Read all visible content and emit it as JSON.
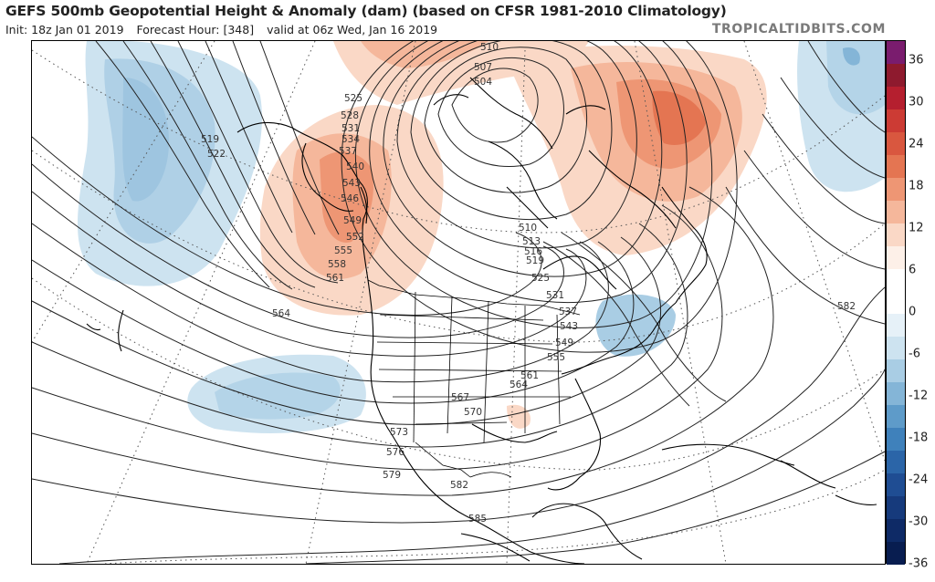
{
  "header": {
    "title": "GEFS 500mb Geopotential Height & Anomaly (dam) (based on CFSR 1981-2010 Climatology)",
    "init": "Init: 18z Jan 01 2019",
    "forecast_hour": "Forecast Hour: [348]",
    "valid": "valid at 06z Wed, Jan 16 2019",
    "site": "TROPICALTIDBITS.COM"
  },
  "colorbar": {
    "ticks": [
      "36",
      "30",
      "24",
      "18",
      "12",
      "6",
      "0",
      "-6",
      "-12",
      "-18",
      "-24",
      "-30",
      "-36"
    ],
    "colors": [
      "#7a1c6e",
      "#8e1a2e",
      "#b51f2f",
      "#cc3b34",
      "#d9573f",
      "#e47552",
      "#ee9674",
      "#f5b79b",
      "#fad8c6",
      "#fdf0e8",
      "#ffffff",
      "#ffffff",
      "#e6f1f8",
      "#cde3f0",
      "#a9cde4",
      "#84b5d7",
      "#5e9bc9",
      "#3f81bb",
      "#2b65a8",
      "#1f4d93",
      "#163a7c",
      "#0e2a66",
      "#081d50"
    ]
  },
  "contour_labels": [
    {
      "text": "519"
    },
    {
      "text": "522"
    },
    {
      "text": "525"
    },
    {
      "text": "528"
    },
    {
      "text": "531"
    },
    {
      "text": "534"
    },
    {
      "text": "537"
    },
    {
      "text": "540"
    },
    {
      "text": "543"
    },
    {
      "text": "546"
    },
    {
      "text": "549"
    },
    {
      "text": "552"
    },
    {
      "text": "555"
    },
    {
      "text": "558"
    },
    {
      "text": "561"
    },
    {
      "text": "564"
    },
    {
      "text": "510"
    },
    {
      "text": "507"
    },
    {
      "text": "504"
    },
    {
      "text": "510"
    },
    {
      "text": "513"
    },
    {
      "text": "516"
    },
    {
      "text": "519"
    },
    {
      "text": "525"
    },
    {
      "text": "531"
    },
    {
      "text": "537"
    },
    {
      "text": "543"
    },
    {
      "text": "549"
    },
    {
      "text": "555"
    },
    {
      "text": "561"
    },
    {
      "text": "564"
    },
    {
      "text": "567"
    },
    {
      "text": "570"
    },
    {
      "text": "573"
    },
    {
      "text": "576"
    },
    {
      "text": "579"
    },
    {
      "text": "582"
    },
    {
      "text": "585"
    },
    {
      "text": "582"
    }
  ]
}
